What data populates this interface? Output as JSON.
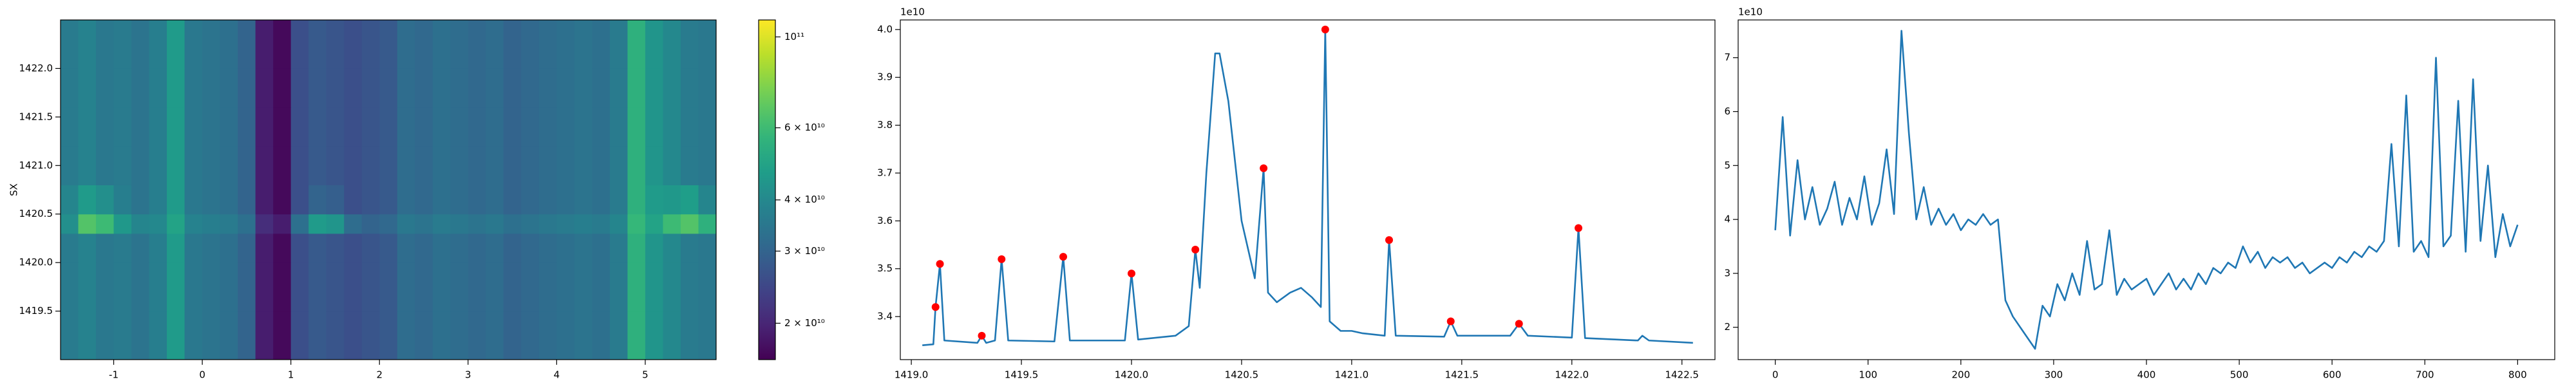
{
  "chart_data": [
    {
      "type": "heatmap",
      "ylabel": "SX",
      "colormap": "viridis",
      "color_scale": "log",
      "xlim": [
        -1.6,
        5.8
      ],
      "ylim": [
        1419.0,
        1422.5
      ],
      "xticks": [
        -1,
        0,
        1,
        2,
        3,
        4,
        5
      ],
      "yticks": [
        1419.5,
        {
          "value": 1420.0,
          "label": "1420.0"
        },
        1420.5,
        {
          "value": 1421.0,
          "label": "1421.0"
        },
        1421.5,
        {
          "value": 1422.0,
          "label": "1422.0"
        }
      ],
      "xbins": [
        -1.6,
        -1.4,
        -1.2,
        -1.0,
        -0.8,
        -0.6,
        -0.4,
        -0.2,
        0.0,
        0.2,
        0.4,
        0.6,
        0.8,
        1.0,
        1.2,
        1.4,
        1.6,
        1.8,
        2.0,
        2.2,
        2.4,
        2.6,
        2.8,
        3.0,
        3.2,
        3.4,
        3.6,
        3.8,
        4.0,
        4.2,
        4.4,
        4.6,
        4.8,
        5.0,
        5.2,
        5.4,
        5.6,
        5.8
      ],
      "ybins": [
        1419.0,
        1419.5,
        1420.0,
        1420.3,
        1420.5,
        1420.8,
        1421.2,
        1421.6,
        1422.0,
        1422.5
      ],
      "z": [
        [
          36000000000.0,
          38000000000.0,
          35000000000.0,
          36000000000.0,
          34000000000.0,
          37000000000.0,
          46000000000.0,
          35000000000.0,
          34000000000.0,
          33000000000.0,
          30000000000.0,
          19000000000.0,
          17000000000.0,
          26000000000.0,
          28000000000.0,
          27000000000.0,
          26000000000.0,
          27000000000.0,
          28000000000.0,
          32000000000.0,
          31000000000.0,
          33000000000.0,
          32000000000.0,
          31000000000.0,
          32000000000.0,
          30000000000.0,
          31000000000.0,
          32000000000.0,
          33000000000.0,
          34000000000.0,
          33000000000.0,
          36000000000.0,
          55000000000.0,
          44000000000.0,
          40000000000.0,
          36000000000.0,
          35000000000.0
        ],
        [
          36000000000.0,
          38000000000.0,
          35000000000.0,
          36000000000.0,
          34000000000.0,
          37000000000.0,
          46000000000.0,
          35000000000.0,
          34000000000.0,
          33000000000.0,
          30000000000.0,
          19000000000.0,
          17000000000.0,
          26000000000.0,
          28000000000.0,
          27000000000.0,
          26000000000.0,
          27000000000.0,
          28000000000.0,
          32000000000.0,
          31000000000.0,
          33000000000.0,
          32000000000.0,
          31000000000.0,
          32000000000.0,
          30000000000.0,
          31000000000.0,
          32000000000.0,
          33000000000.0,
          34000000000.0,
          33000000000.0,
          36000000000.0,
          55000000000.0,
          44000000000.0,
          40000000000.0,
          36000000000.0,
          35000000000.0
        ],
        [
          36000000000.0,
          38000000000.0,
          35000000000.0,
          36000000000.0,
          34000000000.0,
          37000000000.0,
          46000000000.0,
          35000000000.0,
          34000000000.0,
          33000000000.0,
          30000000000.0,
          19000000000.0,
          17000000000.0,
          26000000000.0,
          28000000000.0,
          27000000000.0,
          26000000000.0,
          27000000000.0,
          28000000000.0,
          32000000000.0,
          31000000000.0,
          33000000000.0,
          32000000000.0,
          31000000000.0,
          32000000000.0,
          30000000000.0,
          31000000000.0,
          32000000000.0,
          33000000000.0,
          34000000000.0,
          33000000000.0,
          36000000000.0,
          55000000000.0,
          44000000000.0,
          40000000000.0,
          36000000000.0,
          35000000000.0
        ],
        [
          42000000000.0,
          65000000000.0,
          60000000000.0,
          45000000000.0,
          39000000000.0,
          40000000000.0,
          49000000000.0,
          38000000000.0,
          37000000000.0,
          36000000000.0,
          33000000000.0,
          21000000000.0,
          19000000000.0,
          33000000000.0,
          46000000000.0,
          44000000000.0,
          32000000000.0,
          30000000000.0,
          31000000000.0,
          35000000000.0,
          34000000000.0,
          36000000000.0,
          35000000000.0,
          34000000000.0,
          35000000000.0,
          33000000000.0,
          34000000000.0,
          35000000000.0,
          36000000000.0,
          37000000000.0,
          36000000000.0,
          39000000000.0,
          58000000000.0,
          49000000000.0,
          60000000000.0,
          65000000000.0,
          55000000000.0
        ],
        [
          39000000000.0,
          46000000000.0,
          42000000000.0,
          37000000000.0,
          34000000000.0,
          37000000000.0,
          46000000000.0,
          35000000000.0,
          34000000000.0,
          33000000000.0,
          30000000000.0,
          19000000000.0,
          17000000000.0,
          26000000000.0,
          30000000000.0,
          29000000000.0,
          26000000000.0,
          27000000000.0,
          28000000000.0,
          32000000000.0,
          31000000000.0,
          33000000000.0,
          32000000000.0,
          31000000000.0,
          32000000000.0,
          30000000000.0,
          31000000000.0,
          32000000000.0,
          33000000000.0,
          34000000000.0,
          33000000000.0,
          36000000000.0,
          55000000000.0,
          46000000000.0,
          45000000000.0,
          47000000000.0,
          39000000000.0
        ],
        [
          36000000000.0,
          38000000000.0,
          35000000000.0,
          36000000000.0,
          34000000000.0,
          37000000000.0,
          46000000000.0,
          35000000000.0,
          34000000000.0,
          33000000000.0,
          30000000000.0,
          19000000000.0,
          17000000000.0,
          26000000000.0,
          28000000000.0,
          27000000000.0,
          26000000000.0,
          27000000000.0,
          28000000000.0,
          32000000000.0,
          31000000000.0,
          33000000000.0,
          32000000000.0,
          31000000000.0,
          32000000000.0,
          30000000000.0,
          31000000000.0,
          32000000000.0,
          33000000000.0,
          34000000000.0,
          33000000000.0,
          36000000000.0,
          55000000000.0,
          44000000000.0,
          40000000000.0,
          36000000000.0,
          35000000000.0
        ],
        [
          36000000000.0,
          38000000000.0,
          35000000000.0,
          36000000000.0,
          34000000000.0,
          37000000000.0,
          46000000000.0,
          35000000000.0,
          34000000000.0,
          33000000000.0,
          30000000000.0,
          19000000000.0,
          17000000000.0,
          26000000000.0,
          28000000000.0,
          27000000000.0,
          26000000000.0,
          27000000000.0,
          28000000000.0,
          32000000000.0,
          31000000000.0,
          33000000000.0,
          32000000000.0,
          31000000000.0,
          32000000000.0,
          30000000000.0,
          31000000000.0,
          32000000000.0,
          33000000000.0,
          34000000000.0,
          33000000000.0,
          36000000000.0,
          55000000000.0,
          44000000000.0,
          40000000000.0,
          36000000000.0,
          35000000000.0
        ],
        [
          36000000000.0,
          38000000000.0,
          35000000000.0,
          36000000000.0,
          34000000000.0,
          37000000000.0,
          46000000000.0,
          35000000000.0,
          34000000000.0,
          33000000000.0,
          30000000000.0,
          19000000000.0,
          17000000000.0,
          26000000000.0,
          28000000000.0,
          27000000000.0,
          26000000000.0,
          27000000000.0,
          28000000000.0,
          32000000000.0,
          31000000000.0,
          33000000000.0,
          32000000000.0,
          31000000000.0,
          32000000000.0,
          30000000000.0,
          31000000000.0,
          32000000000.0,
          33000000000.0,
          34000000000.0,
          33000000000.0,
          36000000000.0,
          55000000000.0,
          44000000000.0,
          40000000000.0,
          36000000000.0,
          35000000000.0
        ],
        [
          36000000000.0,
          38000000000.0,
          35000000000.0,
          36000000000.0,
          34000000000.0,
          37000000000.0,
          46000000000.0,
          35000000000.0,
          34000000000.0,
          33000000000.0,
          30000000000.0,
          19000000000.0,
          17000000000.0,
          26000000000.0,
          28000000000.0,
          27000000000.0,
          26000000000.0,
          27000000000.0,
          28000000000.0,
          32000000000.0,
          31000000000.0,
          33000000000.0,
          32000000000.0,
          31000000000.0,
          32000000000.0,
          30000000000.0,
          31000000000.0,
          32000000000.0,
          33000000000.0,
          34000000000.0,
          33000000000.0,
          36000000000.0,
          55000000000.0,
          44000000000.0,
          40000000000.0,
          36000000000.0,
          35000000000.0
        ]
      ],
      "clim": [
        16300000000.0,
        110000000000.0
      ],
      "cticks": [
        {
          "value": 100000000000.0,
          "label": "10¹¹"
        },
        {
          "value": 60000000000.0,
          "label": "6 × 10¹⁰"
        },
        {
          "value": 40000000000.0,
          "label": "4 × 10¹⁰"
        },
        {
          "value": 30000000000.0,
          "label": "3 × 10¹⁰"
        },
        {
          "value": 20000000000.0,
          "label": "2 × 10¹⁰"
        }
      ]
    },
    {
      "type": "line",
      "offset_label": "1e10",
      "xlim": [
        1418.95,
        1422.65
      ],
      "ylim": [
        3.31,
        4.02
      ],
      "xticks": [
        {
          "value": 1419.0,
          "label": "1419.0"
        },
        1419.5,
        {
          "value": 1420.0,
          "label": "1420.0"
        },
        1420.5,
        {
          "value": 1421.0,
          "label": "1421.0"
        },
        1421.5,
        {
          "value": 1422.0,
          "label": "1422.0"
        },
        1422.5
      ],
      "yticks": [
        3.4,
        3.5,
        3.6,
        3.7,
        3.8,
        3.9,
        {
          "value": 4.0,
          "label": "4.0"
        }
      ],
      "series": [
        {
          "color": "#1f77b4",
          "x": [
            1419.05,
            1419.1,
            1419.11,
            1419.13,
            1419.15,
            1419.3,
            1419.32,
            1419.34,
            1419.38,
            1419.41,
            1419.44,
            1419.65,
            1419.69,
            1419.72,
            1419.97,
            1420.0,
            1420.03,
            1420.2,
            1420.26,
            1420.29,
            1420.31,
            1420.34,
            1420.38,
            1420.4,
            1420.44,
            1420.5,
            1420.56,
            1420.6,
            1420.62,
            1420.66,
            1420.72,
            1420.77,
            1420.82,
            1420.86,
            1420.88,
            1420.9,
            1420.95,
            1421.0,
            1421.05,
            1421.15,
            1421.17,
            1421.2,
            1421.42,
            1421.45,
            1421.48,
            1421.72,
            1421.76,
            1421.8,
            1422.0,
            1422.03,
            1422.06,
            1422.3,
            1422.32,
            1422.35,
            1422.55
          ],
          "values": [
            3.34,
            3.342,
            3.42,
            3.51,
            3.35,
            3.345,
            3.36,
            3.345,
            3.35,
            3.52,
            3.35,
            3.348,
            3.525,
            3.35,
            3.35,
            3.49,
            3.352,
            3.36,
            3.38,
            3.54,
            3.46,
            3.7,
            3.95,
            3.95,
            3.85,
            3.6,
            3.48,
            3.71,
            3.45,
            3.43,
            3.45,
            3.46,
            3.44,
            3.42,
            4.0,
            3.39,
            3.37,
            3.37,
            3.365,
            3.36,
            3.56,
            3.36,
            3.358,
            3.39,
            3.36,
            3.36,
            3.385,
            3.36,
            3.356,
            3.585,
            3.355,
            3.35,
            3.36,
            3.35,
            3.345
          ]
        },
        {
          "kind": "scatter",
          "color": "#ff0000",
          "x": [
            1419.11,
            1419.13,
            1419.32,
            1419.41,
            1419.69,
            1420.0,
            1420.29,
            1420.6,
            1420.88,
            1421.17,
            1421.45,
            1421.76,
            1422.03
          ],
          "values": [
            3.42,
            3.51,
            3.36,
            3.52,
            3.525,
            3.49,
            3.54,
            3.71,
            4.0,
            3.56,
            3.39,
            3.385,
            3.585
          ]
        }
      ]
    },
    {
      "type": "line",
      "offset_label": "1e10",
      "xlim": [
        -40,
        840
      ],
      "ylim": [
        1.4,
        7.7
      ],
      "xticks": [
        0,
        100,
        200,
        300,
        400,
        500,
        600,
        700,
        800
      ],
      "yticks": [
        2,
        3,
        4,
        5,
        6,
        7
      ],
      "series": [
        {
          "color": "#1f77b4",
          "x": [
            0,
            8,
            16,
            24,
            32,
            40,
            48,
            56,
            64,
            72,
            80,
            88,
            96,
            104,
            112,
            120,
            128,
            136,
            144,
            152,
            160,
            168,
            176,
            184,
            192,
            200,
            208,
            216,
            224,
            232,
            240,
            248,
            256,
            264,
            272,
            280,
            288,
            296,
            304,
            312,
            320,
            328,
            336,
            344,
            352,
            360,
            368,
            376,
            384,
            392,
            400,
            408,
            416,
            424,
            432,
            440,
            448,
            456,
            464,
            472,
            480,
            488,
            496,
            504,
            512,
            520,
            528,
            536,
            544,
            552,
            560,
            568,
            576,
            584,
            592,
            600,
            608,
            616,
            624,
            632,
            640,
            648,
            656,
            664,
            672,
            680,
            688,
            696,
            704,
            712,
            720,
            728,
            736,
            744,
            752,
            760,
            768,
            776,
            784,
            792,
            800
          ],
          "values": [
            3.8,
            5.9,
            3.7,
            5.1,
            4.0,
            4.6,
            3.9,
            4.2,
            4.7,
            3.9,
            4.4,
            4.0,
            4.8,
            3.9,
            4.3,
            5.3,
            4.1,
            7.5,
            5.6,
            4.0,
            4.6,
            3.9,
            4.2,
            3.9,
            4.1,
            3.8,
            4.0,
            3.9,
            4.1,
            3.9,
            4.0,
            2.5,
            2.2,
            2.0,
            1.8,
            1.6,
            2.4,
            2.2,
            2.8,
            2.5,
            3.0,
            2.6,
            3.6,
            2.7,
            2.8,
            3.8,
            2.6,
            2.9,
            2.7,
            2.8,
            2.9,
            2.6,
            2.8,
            3.0,
            2.7,
            2.9,
            2.7,
            3.0,
            2.8,
            3.1,
            3.0,
            3.2,
            3.1,
            3.5,
            3.2,
            3.4,
            3.1,
            3.3,
            3.2,
            3.3,
            3.1,
            3.2,
            3.0,
            3.1,
            3.2,
            3.1,
            3.3,
            3.2,
            3.4,
            3.3,
            3.5,
            3.4,
            3.6,
            5.4,
            3.5,
            6.3,
            3.4,
            3.6,
            3.3,
            7.0,
            3.5,
            3.7,
            6.2,
            3.4,
            6.6,
            3.6,
            5.0,
            3.3,
            4.1,
            3.5,
            3.9
          ]
        }
      ]
    }
  ]
}
